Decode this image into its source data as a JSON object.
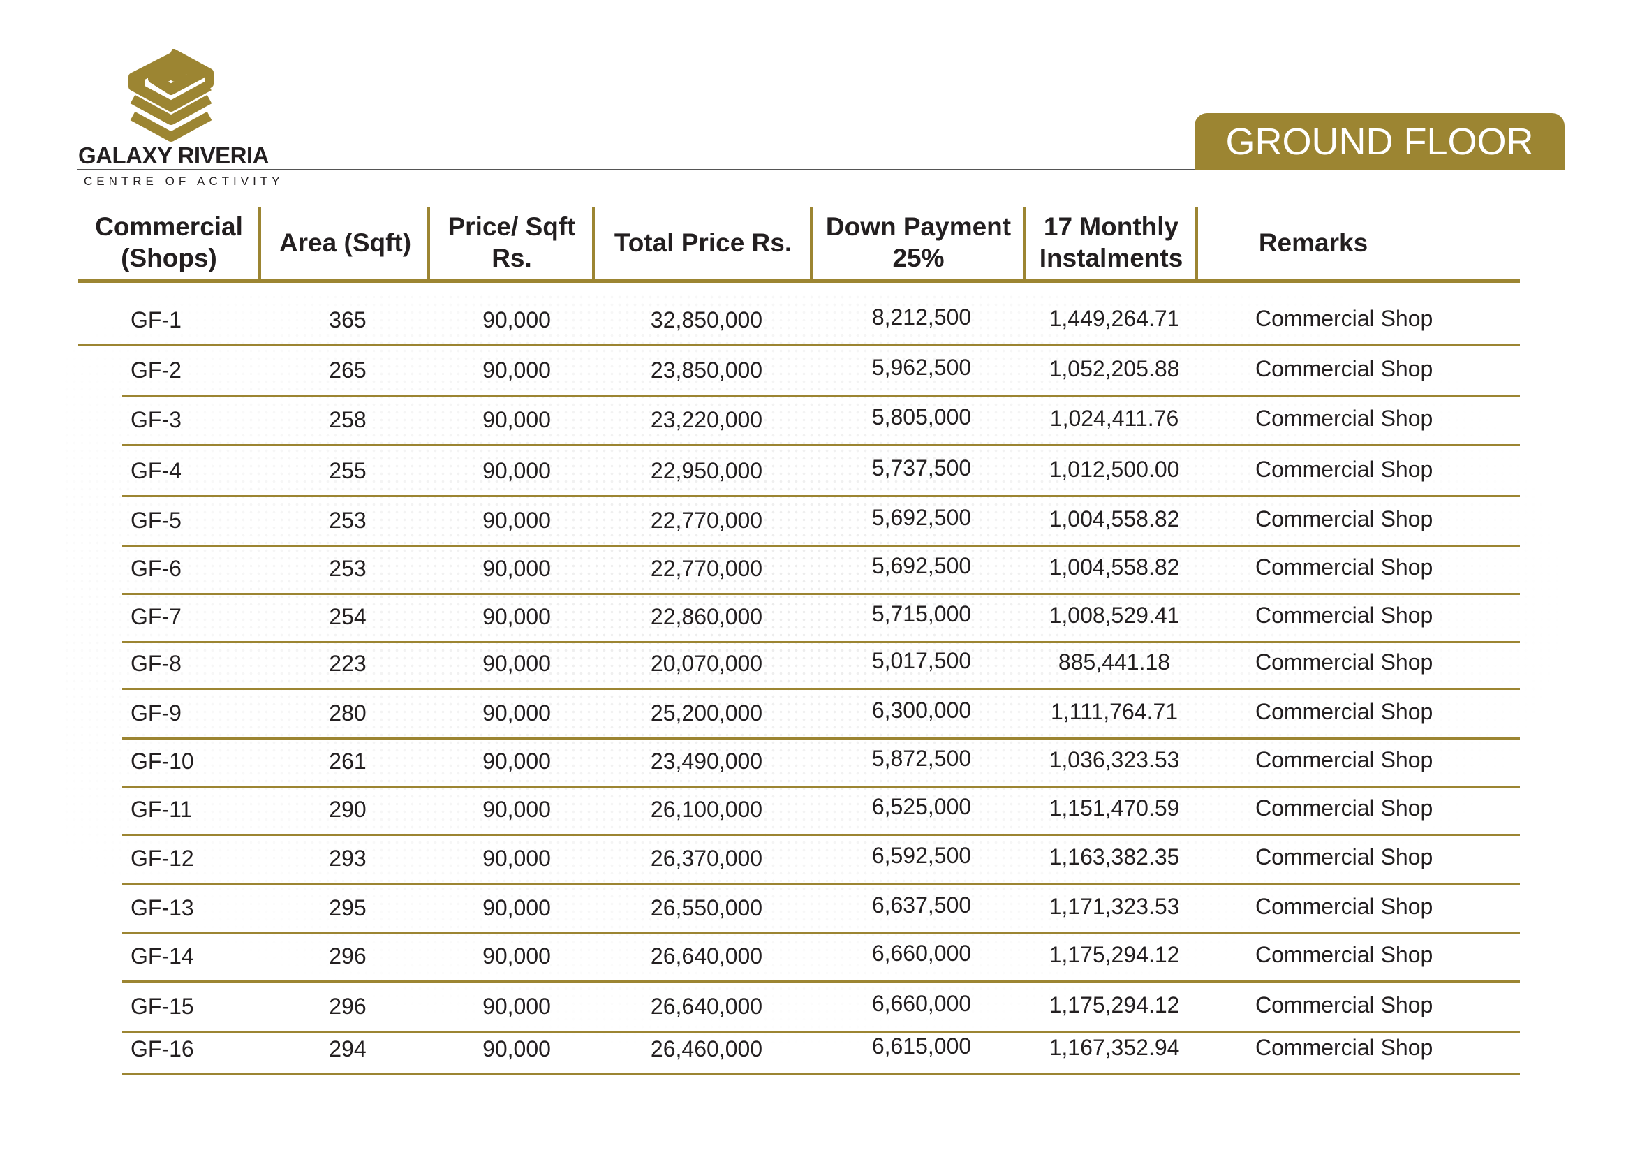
{
  "brand": {
    "name": "GALAXY RIVERIA",
    "tagline": "CENTRE OF ACTIVITY",
    "color": "#9c8532"
  },
  "floor_badge": "GROUND FLOOR",
  "table": {
    "headers": [
      "Commercial (Shops)",
      "Area (Sqft)",
      "Price/ Sqft Rs.",
      "Total Price Rs.",
      "Down Payment 25%",
      "17 Monthly Instalments",
      "Remarks"
    ],
    "rows": [
      [
        "GF-1",
        "365",
        "90,000",
        "32,850,000",
        "8,212,500",
        "1,449,264.71",
        "Commercial Shop"
      ],
      [
        "GF-2",
        "265",
        "90,000",
        "23,850,000",
        "5,962,500",
        "1,052,205.88",
        "Commercial Shop"
      ],
      [
        "GF-3",
        "258",
        "90,000",
        "23,220,000",
        "5,805,000",
        "1,024,411.76",
        "Commercial Shop"
      ],
      [
        "GF-4",
        "255",
        "90,000",
        "22,950,000",
        "5,737,500",
        "1,012,500.00",
        "Commercial Shop"
      ],
      [
        "GF-5",
        "253",
        "90,000",
        "22,770,000",
        "5,692,500",
        "1,004,558.82",
        "Commercial Shop"
      ],
      [
        "GF-6",
        "253",
        "90,000",
        "22,770,000",
        "5,692,500",
        "1,004,558.82",
        "Commercial Shop"
      ],
      [
        "GF-7",
        "254",
        "90,000",
        "22,860,000",
        "5,715,000",
        "1,008,529.41",
        "Commercial Shop"
      ],
      [
        "GF-8",
        "223",
        "90,000",
        "20,070,000",
        "5,017,500",
        "885,441.18",
        "Commercial Shop"
      ],
      [
        "GF-9",
        "280",
        "90,000",
        "25,200,000",
        "6,300,000",
        "1,111,764.71",
        "Commercial Shop"
      ],
      [
        "GF-10",
        "261",
        "90,000",
        "23,490,000",
        "5,872,500",
        "1,036,323.53",
        "Commercial Shop"
      ],
      [
        "GF-11",
        "290",
        "90,000",
        "26,100,000",
        "6,525,000",
        "1,151,470.59",
        "Commercial Shop"
      ],
      [
        "GF-12",
        "293",
        "90,000",
        "26,370,000",
        "6,592,500",
        "1,163,382.35",
        "Commercial Shop"
      ],
      [
        "GF-13",
        "295",
        "90,000",
        "26,550,000",
        "6,637,500",
        "1,171,323.53",
        "Commercial Shop"
      ],
      [
        "GF-14",
        "296",
        "90,000",
        "26,640,000",
        "6,660,000",
        "1,175,294.12",
        "Commercial Shop"
      ],
      [
        "GF-15",
        "296",
        "90,000",
        "26,640,000",
        "6,660,000",
        "1,175,294.12",
        "Commercial Shop"
      ],
      [
        "GF-16",
        "294",
        "90,000",
        "26,460,000",
        "6,615,000",
        "1,167,352.94",
        "Commercial Shop"
      ]
    ]
  }
}
